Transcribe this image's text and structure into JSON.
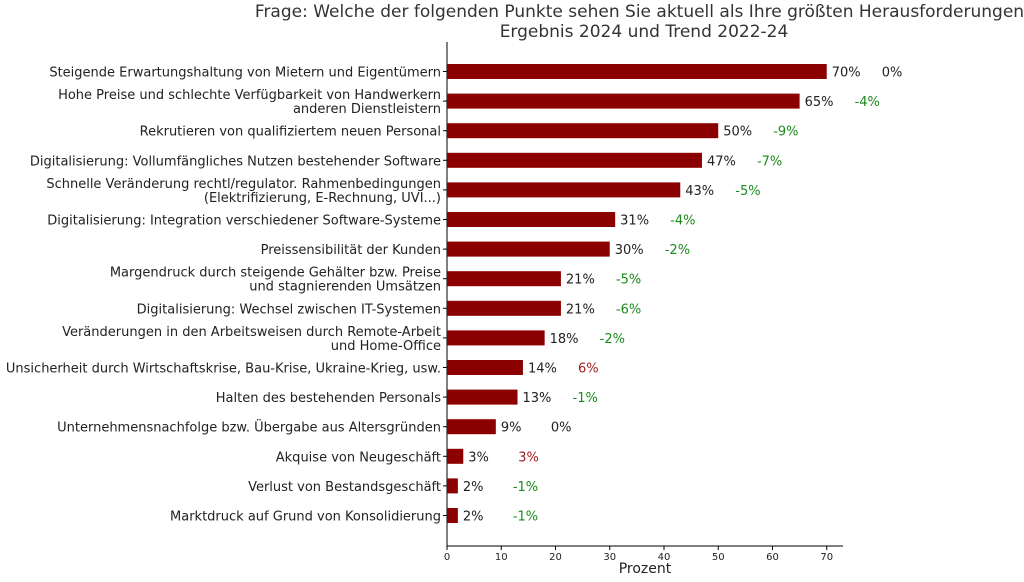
{
  "chart_data": {
    "type": "bar",
    "orientation": "horizontal",
    "title": "Frage: Welche der folgenden Punkte sehen Sie aktuell als Ihre größten Herausforderungen?",
    "subtitle": "Ergebnis 2024 und Trend 2022-24",
    "xlabel": "Prozent",
    "ylabel": "",
    "xlim": [
      0,
      73
    ],
    "xticks": [
      "0",
      "10",
      "20",
      "30",
      "40",
      "50",
      "60",
      "70"
    ],
    "grid": false,
    "colors": {
      "bar": "#8b0000",
      "trend_negative": "#1a8a1a",
      "trend_positive": "#a01c1c",
      "trend_zero": "#222222"
    },
    "categories": [
      [
        "Steigende Erwartungshaltung von Mietern und Eigentümern"
      ],
      [
        "Hohe Preise und schlechte Verfügbarkeit von Handwerkern",
        "anderen Dienstleistern"
      ],
      [
        "Rekrutieren von qualifiziertem neuen Personal"
      ],
      [
        "Digitalisierung: Vollumfängliches Nutzen bestehender Software"
      ],
      [
        "Schnelle Veränderung rechtl/regulator. Rahmenbedingungen",
        "(Elektrifizierung, E-Rechnung, UVI...)"
      ],
      [
        "Digitalisierung: Integration verschiedener Software-Systeme"
      ],
      [
        "Preissensibilität der Kunden"
      ],
      [
        "Margendruck durch steigende Gehälter bzw. Preise",
        "und stagnierenden Umsätzen"
      ],
      [
        "Digitalisierung: Wechsel zwischen IT-Systemen"
      ],
      [
        "Veränderungen in den Arbeitsweisen durch Remote-Arbeit",
        "und Home-Office"
      ],
      [
        "Unsicherheit durch Wirtschaftskrise, Bau-Krise, Ukraine-Krieg, usw."
      ],
      [
        "Halten des bestehenden Personals"
      ],
      [
        "Unternehmensnachfolge bzw. Übergabe aus Altersgründen"
      ],
      [
        "Akquise von Neugeschäft"
      ],
      [
        "Verlust von Bestandsgeschäft"
      ],
      [
        "Marktdruck auf Grund von Konsolidierung"
      ]
    ],
    "values": [
      70,
      65,
      50,
      47,
      43,
      31,
      30,
      21,
      21,
      18,
      14,
      13,
      9,
      3,
      2,
      2
    ],
    "value_labels": [
      "70%",
      "65%",
      "50%",
      "47%",
      "43%",
      "31%",
      "30%",
      "21%",
      "21%",
      "18%",
      "14%",
      "13%",
      "9%",
      "3%",
      "2%",
      "2%"
    ],
    "trend_labels": [
      "0%",
      "-4%",
      "-9%",
      "-7%",
      "-5%",
      "-4%",
      "-2%",
      "-5%",
      "-6%",
      "-2%",
      "6%",
      "-1%",
      "0%",
      "3%",
      "-1%",
      "-1%"
    ],
    "trend_values": [
      0,
      -4,
      -9,
      -7,
      -5,
      -4,
      -2,
      -5,
      -6,
      -2,
      6,
      -1,
      0,
      3,
      -1,
      -1
    ]
  }
}
